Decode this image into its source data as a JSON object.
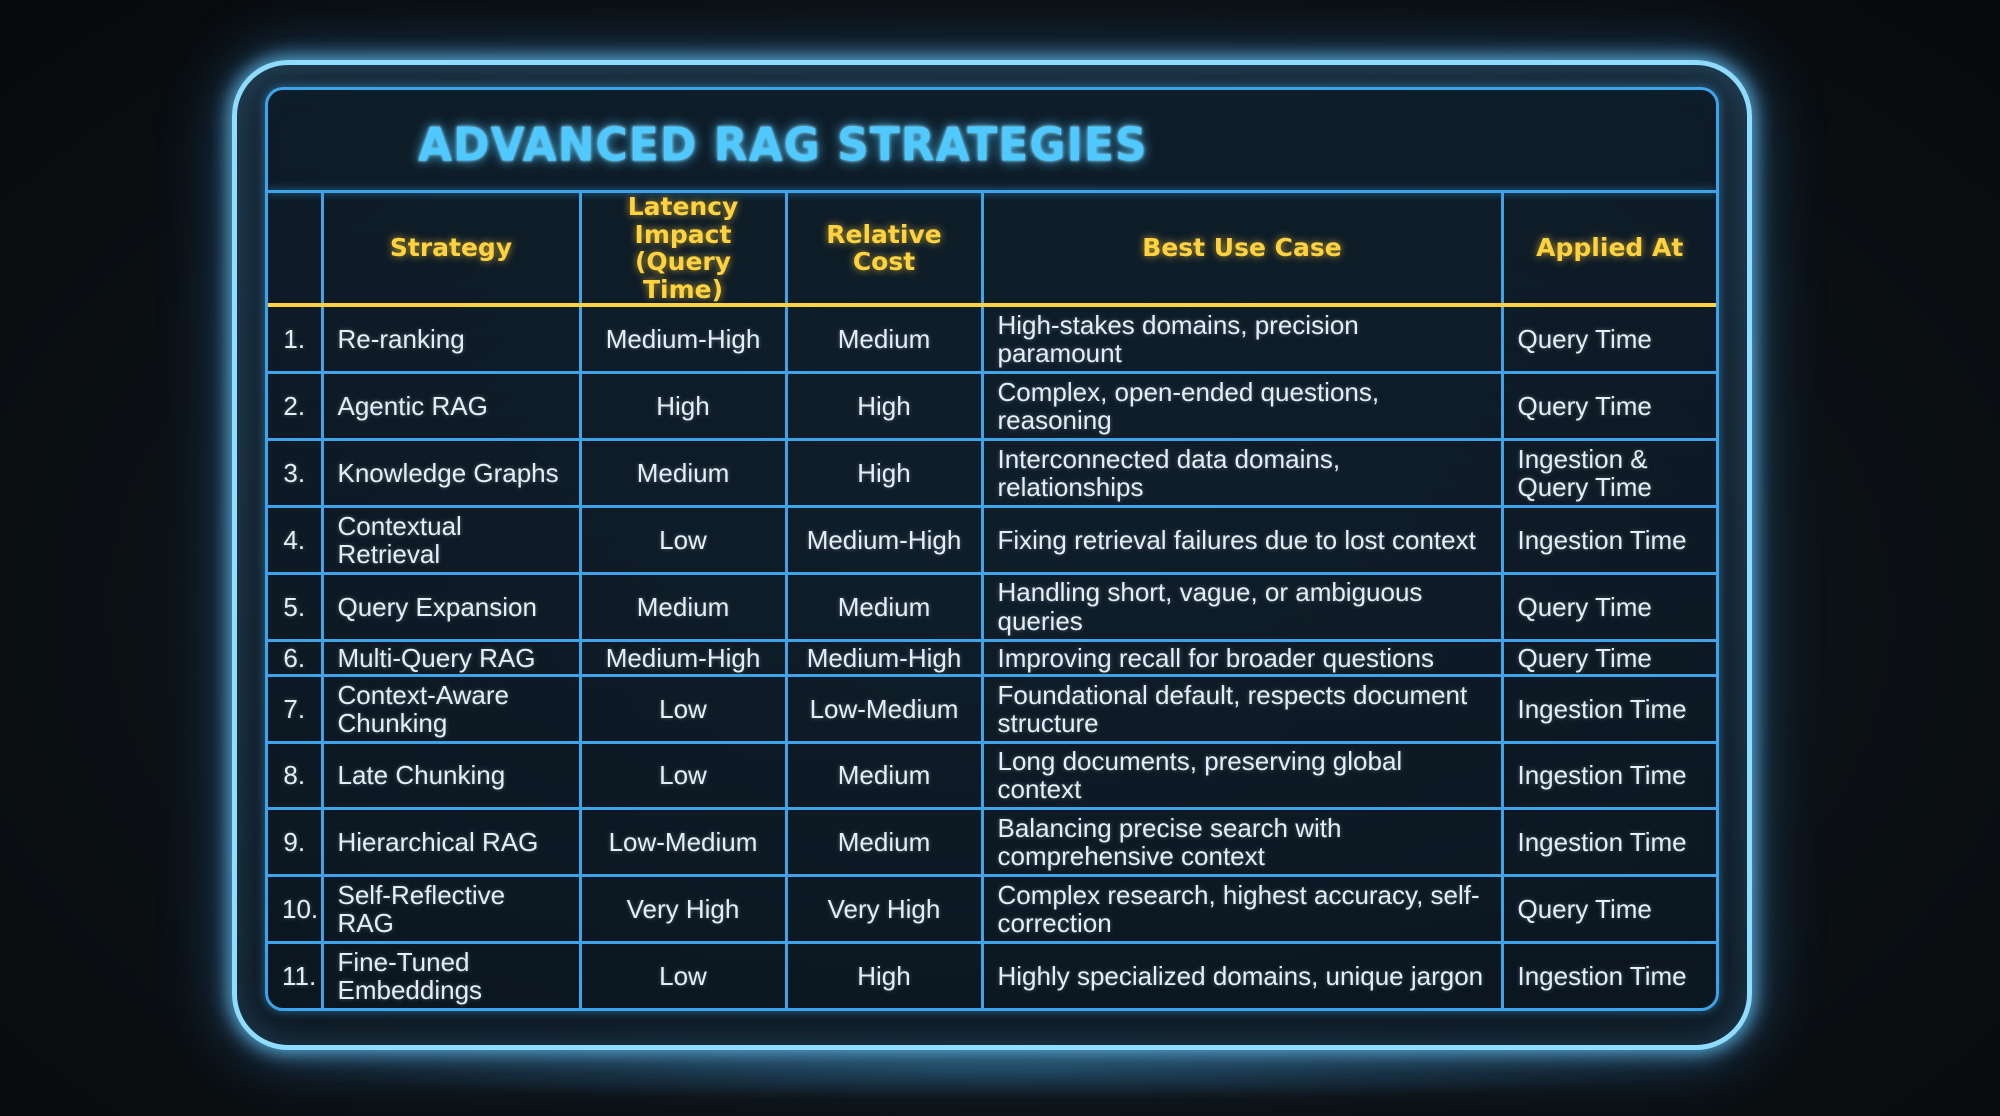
{
  "title": "ADVANCED RAG STRATEGIES",
  "headers": {
    "number": "",
    "strategy": "Strategy",
    "latency": "Latency Impact (Query Time)",
    "cost": "Relative Cost",
    "use_case": "Best Use Case",
    "applied": "Applied At"
  },
  "level_colors": {
    "Low": "#5ee35e",
    "Low-Medium": "#6ee36e",
    "Medium": "#ffcf3a",
    "Medium-High": "#ffcf3a",
    "High": "#ff4a42",
    "Very High": "#ff4a42"
  },
  "rows": [
    {
      "num": "1.",
      "strategy": "Re-ranking",
      "latency": "Medium-High",
      "cost": "Medium",
      "use_case": "High-stakes domains, precision paramount",
      "applied": "Query Time"
    },
    {
      "num": "2.",
      "strategy": "Agentic RAG",
      "latency": "High",
      "cost": "High",
      "use_case": "Complex, open-ended questions, reasoning",
      "applied": "Query Time"
    },
    {
      "num": "3.",
      "strategy": "Knowledge Graphs",
      "latency": "Medium",
      "cost": "High",
      "use_case": "Interconnected data domains, relationships",
      "applied": "Ingestion & Query Time"
    },
    {
      "num": "4.",
      "strategy": "Contextual Retrieval",
      "latency": "Low",
      "cost": "Medium-High",
      "use_case": "Fixing retrieval failures due to lost context",
      "applied": "Ingestion Time"
    },
    {
      "num": "5.",
      "strategy": "Query Expansion",
      "latency": "Medium",
      "cost": "Medium",
      "use_case": "Handling short, vague, or ambiguous queries",
      "applied": "Query Time"
    },
    {
      "num": "6.",
      "strategy": "Multi-Query RAG",
      "latency": "Medium-High",
      "cost": "Medium-High",
      "use_case": "Improving recall for broader questions",
      "applied": "Query Time"
    },
    {
      "num": "7.",
      "strategy": "Context-Aware Chunking",
      "latency": "Low",
      "cost": "Low-Medium",
      "use_case": "Foundational default, respects document structure",
      "applied": "Ingestion Time"
    },
    {
      "num": "8.",
      "strategy": "Late Chunking",
      "latency": "Low",
      "cost": "Medium",
      "use_case": "Long documents, preserving global context",
      "applied": "Ingestion Time"
    },
    {
      "num": "9.",
      "strategy": "Hierarchical RAG",
      "latency": "Low-Medium",
      "cost": "Medium",
      "use_case": "Balancing precise search with comprehensive context",
      "applied": "Ingestion Time"
    },
    {
      "num": "10.",
      "strategy": "Self-Reflective RAG",
      "latency": "Very High",
      "cost": "Very High",
      "use_case": "Complex research, highest accuracy, self-correction",
      "applied": "Query Time"
    },
    {
      "num": "11.",
      "strategy": "Fine-Tuned Embeddings",
      "latency": "Low",
      "cost": "High",
      "use_case": "Highly specialized domains, unique jargon",
      "applied": "Ingestion Time"
    }
  ]
}
